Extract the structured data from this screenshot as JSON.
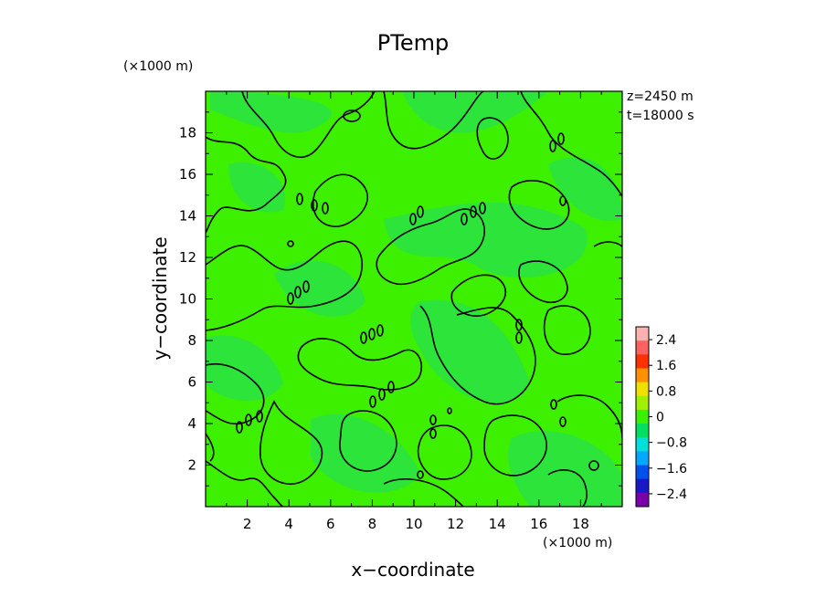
{
  "chart_data": {
    "type": "heatmap",
    "title": "PTemp",
    "xlabel": "x−coordinate",
    "ylabel": "y−coordinate",
    "x_unit": "(×1000 m)",
    "y_unit": "(×1000 m)",
    "xlim": [
      0,
      20
    ],
    "ylim": [
      0,
      20
    ],
    "x_ticks": [
      "2",
      "4",
      "6",
      "8",
      "10",
      "12",
      "14",
      "16",
      "18"
    ],
    "y_ticks": [
      "2",
      "4",
      "6",
      "8",
      "10",
      "12",
      "14",
      "16",
      "18"
    ],
    "annotations": [
      "z=2450  m",
      "t=18000  s"
    ],
    "field_color": "#3cf000",
    "field_color_dark": "#2ce43a",
    "contour_level": 0,
    "colorbar": {
      "range": [
        -2.8,
        2.8
      ],
      "tick_labels": [
        "2.4",
        "1.6",
        "0.8",
        "0",
        "−0.8",
        "−1.6",
        "−2.4"
      ],
      "tick_values": [
        2.4,
        1.6,
        0.8,
        0,
        -0.8,
        -1.6,
        -2.4
      ],
      "colors": [
        "#7a00a8",
        "#1818c8",
        "#0050f0",
        "#00a8ff",
        "#00e0d8",
        "#00e060",
        "#3cf000",
        "#a0f000",
        "#f0e000",
        "#ff9000",
        "#ff3000",
        "#ff6060",
        "#ffb0b0"
      ]
    }
  }
}
